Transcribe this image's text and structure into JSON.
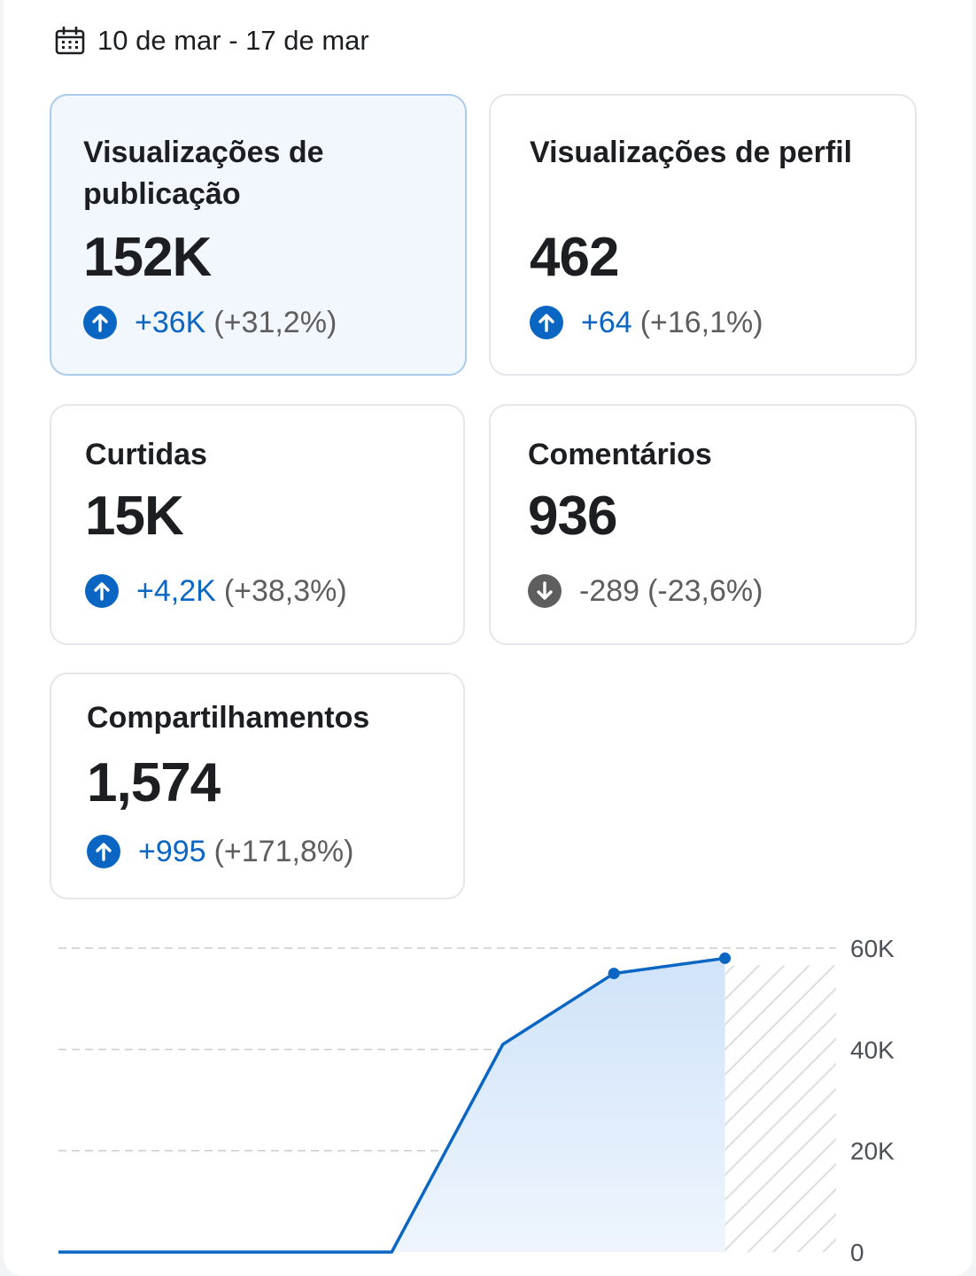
{
  "date_range": "10 de mar - 17 de mar",
  "icons": {
    "calendar": "calendar-icon",
    "up": "arrow-up-circle-icon",
    "down": "arrow-down-circle-icon"
  },
  "colors": {
    "accent": "#0a66c2",
    "negative": "#5e5e5e",
    "selected_bg": "#f2f7fd",
    "selected_border": "#a9cbec",
    "area_fill": "#d4e6fa"
  },
  "cards": [
    {
      "title": "Visualizações de publicação",
      "value": "152K",
      "delta": "+36K",
      "pct": "(+31,2%)",
      "trend": "up",
      "selected": true
    },
    {
      "title": "Visualizações de perfil",
      "value": "462",
      "delta": "+64",
      "pct": "(+16,1%)",
      "trend": "up",
      "selected": false
    },
    {
      "title": "Curtidas",
      "value": "15K",
      "delta": "+4,2K",
      "pct": "(+38,3%)",
      "trend": "up",
      "selected": false
    },
    {
      "title": "Comentários",
      "value": "936",
      "delta": "-289",
      "pct": "(-23,6%)",
      "trend": "down",
      "selected": false
    },
    {
      "title": "Compartilhamentos",
      "value": "1,574",
      "delta": "+995",
      "pct": "(+171,8%)",
      "trend": "up",
      "selected": false
    }
  ],
  "chart_data": {
    "type": "area",
    "x": [
      0,
      1,
      2,
      3,
      4,
      5,
      6,
      7
    ],
    "ylim": [
      0,
      60000
    ],
    "yticks": [
      0,
      20000,
      40000,
      60000
    ],
    "ytick_labels": [
      "0",
      "20K",
      "40K",
      "60K"
    ],
    "series": [
      {
        "values": [
          0,
          0,
          0,
          0,
          41000,
          55000,
          58000,
          null
        ]
      }
    ],
    "marked_points": [
      5,
      6
    ],
    "partial_period_start": 6,
    "grid": true,
    "legend": "none"
  }
}
